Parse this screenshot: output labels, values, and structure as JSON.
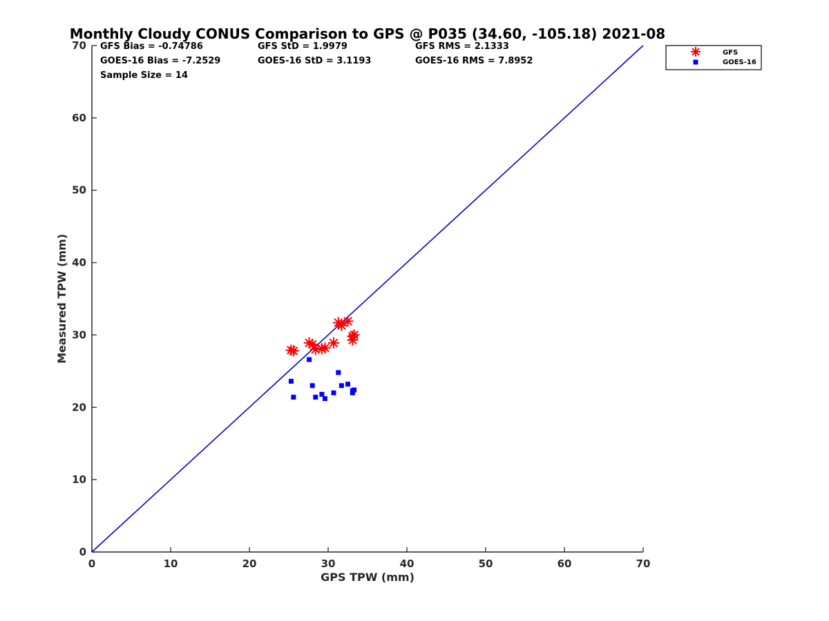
{
  "chart_data": {
    "type": "scatter",
    "title": "Monthly Cloudy CONUS Comparison to GPS @ P035 (34.60, -105.18) 2021-08",
    "xlabel": "GPS TPW (mm)",
    "ylabel": "Measured TPW (mm)",
    "xlim": [
      0,
      70
    ],
    "ylim": [
      0,
      70
    ],
    "xticks": [
      "0",
      "10",
      "20",
      "30",
      "40",
      "50",
      "60",
      "70"
    ],
    "yticks": [
      "0",
      "10",
      "20",
      "30",
      "40",
      "50",
      "60",
      "70"
    ],
    "reference_line": {
      "name": "1:1 line",
      "x": [
        0,
        70
      ],
      "y": [
        0,
        70
      ],
      "color": "#0000d0"
    },
    "stats": {
      "gfs_bias": "GFS Bias = -0.74786",
      "gfs_std": "GFS StD = 1.9979",
      "gfs_rms": "GFS RMS = 2.1333",
      "goes_bias": "GOES-16 Bias = -7.2529",
      "goes_std": "GOES-16 StD = 3.1193",
      "goes_rms": "GOES-16 RMS = 7.8952",
      "sample_size": "Sample Size = 14"
    },
    "series": [
      {
        "name": "GFS",
        "marker": "asterisk",
        "color": "#ff0000",
        "x": [
          25.3,
          25.6,
          27.6,
          28.0,
          28.4,
          29.2,
          29.6,
          30.7,
          31.3,
          31.7,
          32.5,
          33.1,
          33.1,
          33.3
        ],
        "y": [
          27.9,
          27.8,
          28.9,
          28.7,
          28.0,
          28.1,
          28.2,
          28.9,
          31.7,
          31.3,
          31.9,
          29.8,
          29.3,
          30.0
        ]
      },
      {
        "name": "GOES-16",
        "marker": "square",
        "color": "#0000ff",
        "x": [
          25.3,
          25.6,
          27.6,
          28.0,
          28.4,
          29.2,
          29.6,
          30.7,
          31.3,
          31.7,
          32.5,
          33.1,
          33.1,
          33.3
        ],
        "y": [
          23.6,
          21.4,
          26.6,
          23.0,
          21.4,
          21.8,
          21.2,
          22.0,
          24.8,
          23.0,
          23.2,
          22.0,
          22.3,
          22.4
        ]
      }
    ],
    "legend": {
      "position": "top-right-outside",
      "entries": [
        "GFS",
        "GOES-16"
      ]
    }
  }
}
